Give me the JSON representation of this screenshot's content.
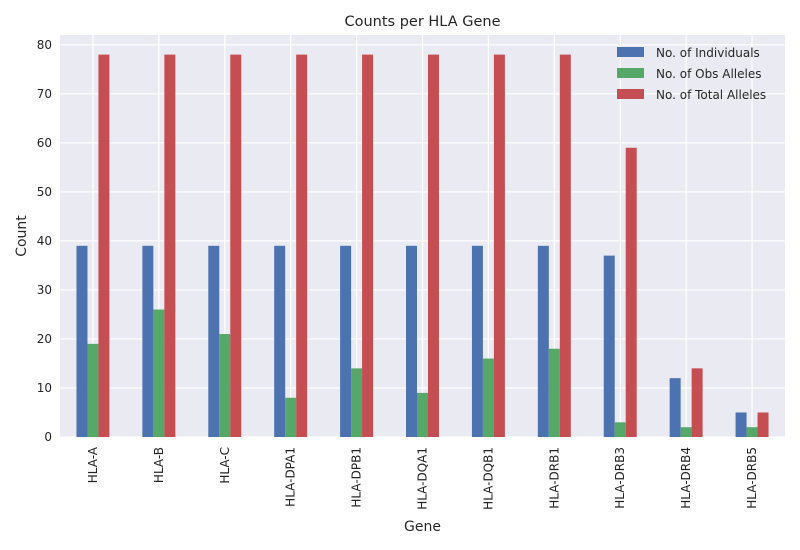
{
  "chart_data": {
    "type": "bar",
    "title": "Counts per HLA Gene",
    "xlabel": "Gene",
    "ylabel": "Count",
    "ylim": [
      0,
      82
    ],
    "yticks": [
      0,
      10,
      20,
      30,
      40,
      50,
      60,
      70,
      80
    ],
    "grid": true,
    "legend_position": "top-right",
    "categories": [
      "HLA-A",
      "HLA-B",
      "HLA-C",
      "HLA-DPA1",
      "HLA-DPB1",
      "HLA-DQA1",
      "HLA-DQB1",
      "HLA-DRB1",
      "HLA-DRB3",
      "HLA-DRB4",
      "HLA-DRB5"
    ],
    "series": [
      {
        "name": "No. of Individuals",
        "color": "#4C72B0",
        "values": [
          39,
          39,
          39,
          39,
          39,
          39,
          39,
          39,
          37,
          12,
          5
        ]
      },
      {
        "name": "No. of Obs Alleles",
        "color": "#55A868",
        "values": [
          19,
          26,
          21,
          8,
          14,
          9,
          16,
          18,
          3,
          2,
          2
        ]
      },
      {
        "name": "No. of Total Alleles",
        "color": "#C44E52",
        "values": [
          78,
          78,
          78,
          78,
          78,
          78,
          78,
          78,
          59,
          14,
          5
        ]
      }
    ],
    "background_color": "#EAEAF2",
    "grid_color": "#FFFFFF"
  }
}
